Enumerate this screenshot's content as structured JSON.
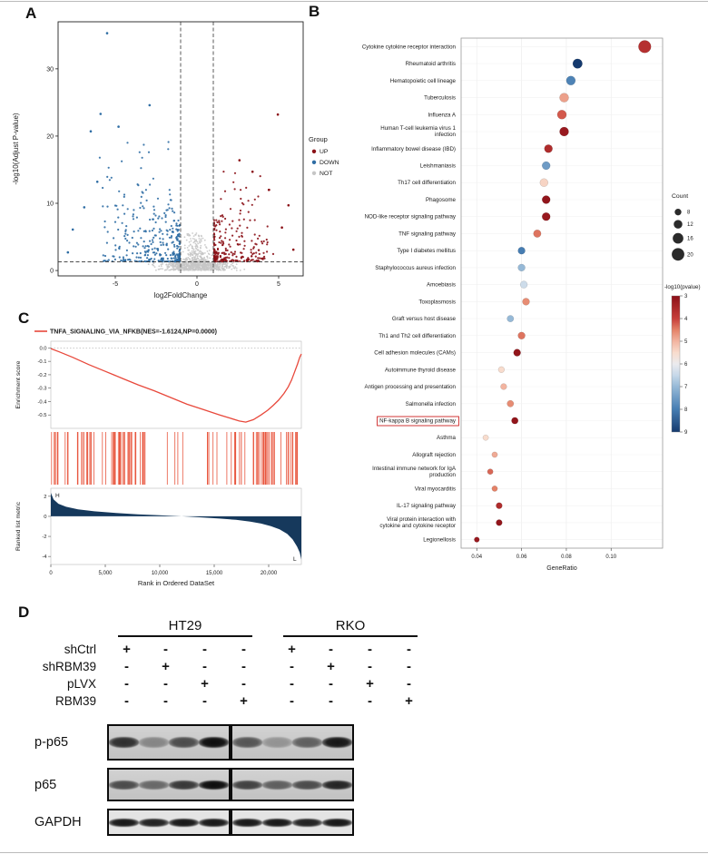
{
  "panels": {
    "a": "A",
    "b": "B",
    "c": "C",
    "d": "D"
  },
  "chart_data": [
    {
      "id": "volcano",
      "type": "scatter",
      "xlabel": "log2FoldChange",
      "ylabel": "-log10(Adjust P-value)",
      "xlim": [
        -8.5,
        6.5
      ],
      "ylim": [
        -0.8,
        37
      ],
      "xticks": [
        -5,
        0,
        5
      ],
      "yticks": [
        0,
        10,
        20,
        30
      ],
      "vlines": [
        -1,
        1
      ],
      "hline": 1.3,
      "legend": {
        "title": "Group",
        "items": [
          {
            "label": "UP",
            "color": "#8B1117"
          },
          {
            "label": "DOWN",
            "color": "#2E6DA4"
          },
          {
            "label": "NOT",
            "color": "#C6C6C6"
          }
        ]
      },
      "groups": [
        {
          "name": "UP",
          "color": "#8B1117"
        },
        {
          "name": "DOWN",
          "color": "#2E6DA4"
        },
        {
          "name": "NOT",
          "color": "#C6C6C6"
        }
      ],
      "seed": 7,
      "clusters": [
        {
          "group": 2,
          "n": 650,
          "xsd": 1.5,
          "y": [
            0.02,
            1.28
          ],
          "ypow": 1.1,
          "r": 0.9
        },
        {
          "group": 2,
          "n": 280,
          "xsd": 0.5,
          "xclip": 0.96,
          "y": [
            1.3,
            5.6
          ],
          "ypow": 3,
          "r": 0.9
        },
        {
          "group": 1,
          "n": 250,
          "x": [
            -1.05,
            -5.8
          ],
          "xpow": 2.2,
          "y": [
            1.35,
            9
          ],
          "ypow": 2.4,
          "r": 1.1
        },
        {
          "group": 1,
          "n": 50,
          "x": [
            -1.5,
            -6.3
          ],
          "xpow": 1.4,
          "y": [
            9,
            20
          ],
          "ypow": 1.9,
          "r": 1.1
        },
        {
          "group": 1,
          "n": 40,
          "x": [
            -2.0,
            -5.2
          ],
          "xpow": 1.2,
          "y": [
            1.4,
            6
          ],
          "ypow": 1.5,
          "r": 1.1
        },
        {
          "group": 0,
          "n": 210,
          "x": [
            1.05,
            4.6
          ],
          "xpow": 2.4,
          "y": [
            1.35,
            7.5
          ],
          "ypow": 2.4,
          "r": 1.1
        },
        {
          "group": 0,
          "n": 28,
          "x": [
            1.3,
            4.5
          ],
          "xpow": 1.5,
          "y": [
            7.5,
            15
          ],
          "ypow": 1.7,
          "r": 1.1
        },
        {
          "group": 0,
          "n": 25,
          "x": [
            1.5,
            4.8
          ],
          "xpow": 1.2,
          "y": [
            1.4,
            5
          ],
          "ypow": 1.5,
          "r": 1.1
        }
      ],
      "outliers": [
        [
          -5.5,
          35.3,
          1
        ],
        [
          -2.9,
          24.6,
          1
        ],
        [
          -5.9,
          23.3,
          1
        ],
        [
          -6.5,
          20.7,
          1
        ],
        [
          -4.8,
          21.4,
          1
        ],
        [
          -6.1,
          13.2,
          1
        ],
        [
          -7.6,
          6.1,
          1
        ],
        [
          -7.9,
          2.7,
          1
        ],
        [
          -6.9,
          9.4,
          1
        ],
        [
          4.95,
          23.2,
          0
        ],
        [
          2.6,
          16.4,
          0
        ],
        [
          3.4,
          14.7,
          0
        ],
        [
          5.6,
          9.7,
          0
        ],
        [
          5.9,
          3.1,
          0
        ],
        [
          4.4,
          12.0,
          0
        ],
        [
          5.2,
          6.4,
          0
        ]
      ]
    },
    {
      "id": "pathway-dotplot",
      "type": "scatter",
      "xlabel": "GeneRatio",
      "xlim": [
        0.033,
        0.123
      ],
      "xticks": [
        0.04,
        0.06,
        0.08,
        0.1
      ],
      "size_legend": {
        "title": "Count",
        "values": [
          8,
          12,
          16,
          20
        ]
      },
      "color_legend": {
        "title": "-log10(pvalue)",
        "ticks": [
          3,
          4,
          5,
          6,
          7,
          8,
          9
        ]
      },
      "highlight_color": "#CC2222",
      "pathways": [
        {
          "name": "Cytokine cytokine receptor interaction",
          "ratio": 0.115,
          "count": 20,
          "logp": 3.7
        },
        {
          "name": "Rheumatoid arthritis",
          "ratio": 0.085,
          "count": 14,
          "logp": 9.0
        },
        {
          "name": "Hematopoietic cell lineage",
          "ratio": 0.082,
          "count": 13,
          "logp": 7.9
        },
        {
          "name": "Tuberculosis",
          "ratio": 0.079,
          "count": 13,
          "logp": 4.8
        },
        {
          "name": "Influenza A",
          "ratio": 0.078,
          "count": 13,
          "logp": 4.2
        },
        {
          "name": "Human T-cell leukemia virus 1\ninfection",
          "ratio": 0.079,
          "count": 13,
          "logp": 3.2
        },
        {
          "name": "Inflammatory bowel disease (IBD)",
          "ratio": 0.072,
          "count": 11,
          "logp": 3.6
        },
        {
          "name": "Leishmaniasis",
          "ratio": 0.071,
          "count": 11,
          "logp": 7.5
        },
        {
          "name": "Th17 cell differentiation",
          "ratio": 0.07,
          "count": 11,
          "logp": 5.4
        },
        {
          "name": "Phagosome",
          "ratio": 0.071,
          "count": 11,
          "logp": 3.1
        },
        {
          "name": "NOD-like receptor signaling pathway",
          "ratio": 0.071,
          "count": 11,
          "logp": 3.2
        },
        {
          "name": "TNF signaling pathway",
          "ratio": 0.067,
          "count": 10,
          "logp": 4.4
        },
        {
          "name": "Type I diabetes mellitus",
          "ratio": 0.06,
          "count": 9,
          "logp": 8.0
        },
        {
          "name": "Staphylococcus aureus infection",
          "ratio": 0.06,
          "count": 9,
          "logp": 7.0
        },
        {
          "name": "Amoebiasis",
          "ratio": 0.061,
          "count": 9,
          "logp": 6.4
        },
        {
          "name": "Toxoplasmosis",
          "ratio": 0.062,
          "count": 9,
          "logp": 4.6
        },
        {
          "name": "Graft versus host disease",
          "ratio": 0.055,
          "count": 8,
          "logp": 7.0
        },
        {
          "name": "Th1 and Th2 cell differentiation",
          "ratio": 0.06,
          "count": 9,
          "logp": 4.4
        },
        {
          "name": "Cell adhesion molecules (CAMs)",
          "ratio": 0.058,
          "count": 9,
          "logp": 3.1
        },
        {
          "name": "Autoimmune thyroid disease",
          "ratio": 0.051,
          "count": 7,
          "logp": 5.5
        },
        {
          "name": "Antigen processing and presentation",
          "ratio": 0.052,
          "count": 7,
          "logp": 5.0
        },
        {
          "name": "Salmonella infection",
          "ratio": 0.055,
          "count": 8,
          "logp": 4.6
        },
        {
          "name": "NF-kappa B signaling pathway",
          "ratio": 0.057,
          "count": 8,
          "logp": 3.1,
          "highlight": true
        },
        {
          "name": "Asthma",
          "ratio": 0.044,
          "count": 6,
          "logp": 5.5
        },
        {
          "name": "Allograft rejection",
          "ratio": 0.048,
          "count": 6,
          "logp": 4.9
        },
        {
          "name": "Intestinal immune network for IgA\nproduction",
          "ratio": 0.046,
          "count": 6,
          "logp": 4.3
        },
        {
          "name": "Viral myocarditis",
          "ratio": 0.048,
          "count": 6,
          "logp": 4.5
        },
        {
          "name": "IL-17 signaling pathway",
          "ratio": 0.05,
          "count": 7,
          "logp": 3.6
        },
        {
          "name": "Viral protein interaction with\ncytokine and cytokine receptor",
          "ratio": 0.05,
          "count": 7,
          "logp": 3.1
        },
        {
          "name": "Legionellosis",
          "ratio": 0.04,
          "count": 5,
          "logp": 3.2
        }
      ]
    },
    {
      "id": "gsea",
      "type": "line",
      "title": "TNFA_SIGNALING_VIA_NFKB(NES=-1.6124,NP=0.0000)",
      "xlabel": "Rank in Ordered DataSet",
      "ylabel_top": "Enrichment score",
      "ylabel_bottom": "Ranked list metric",
      "x_max": 23000,
      "xticks": [
        0,
        5000,
        10000,
        15000,
        20000
      ],
      "xtick_labels": [
        "0",
        "5,000",
        "10,000",
        "15,000",
        "20,000"
      ],
      "es_yticks": [
        0,
        -0.1,
        -0.2,
        -0.3,
        -0.4,
        -0.5
      ],
      "rank_yticks": [
        2,
        0,
        -2,
        -4
      ],
      "es_range": [
        -0.6,
        0.05
      ],
      "rank_range": [
        -4.8,
        2.8
      ],
      "curve_color": "#E8483B",
      "hit_color": "#E8573F",
      "metric_color": "#16395C",
      "labels": {
        "high": "H",
        "low": "L"
      },
      "es_curve": [
        [
          0,
          -0.005
        ],
        [
          800,
          -0.03
        ],
        [
          2000,
          -0.07
        ],
        [
          3500,
          -0.125
        ],
        [
          5000,
          -0.175
        ],
        [
          6500,
          -0.225
        ],
        [
          8000,
          -0.275
        ],
        [
          9500,
          -0.32
        ],
        [
          11000,
          -0.37
        ],
        [
          12500,
          -0.42
        ],
        [
          14000,
          -0.46
        ],
        [
          15500,
          -0.5
        ],
        [
          16500,
          -0.525
        ],
        [
          17300,
          -0.545
        ],
        [
          17900,
          -0.553
        ],
        [
          18600,
          -0.535
        ],
        [
          19300,
          -0.5
        ],
        [
          19900,
          -0.465
        ],
        [
          20400,
          -0.43
        ],
        [
          20900,
          -0.39
        ],
        [
          21400,
          -0.34
        ],
        [
          21800,
          -0.29
        ],
        [
          22100,
          -0.24
        ],
        [
          22400,
          -0.175
        ],
        [
          22650,
          -0.12
        ],
        [
          22850,
          -0.07
        ],
        [
          23000,
          -0.045
        ]
      ],
      "hit_clusters": [
        {
          "n": 58,
          "x": [
            0,
            8800
          ],
          "pow": 1
        },
        {
          "n": 9,
          "x": [
            8800,
            15800
          ],
          "pow": 1
        },
        {
          "n": 46,
          "x": [
            15800,
            23000
          ],
          "pow": 0.85
        }
      ],
      "rank_metric": [
        [
          0,
          2.35
        ],
        [
          250,
          1.7
        ],
        [
          700,
          1.25
        ],
        [
          1400,
          0.95
        ],
        [
          2500,
          0.7
        ],
        [
          4000,
          0.5
        ],
        [
          6000,
          0.33
        ],
        [
          8000,
          0.2
        ],
        [
          10000,
          0.1
        ],
        [
          11800,
          0.02
        ],
        [
          12600,
          -0.03
        ],
        [
          14000,
          -0.12
        ],
        [
          15500,
          -0.22
        ],
        [
          17000,
          -0.35
        ],
        [
          18300,
          -0.52
        ],
        [
          19300,
          -0.72
        ],
        [
          20200,
          -0.98
        ],
        [
          21000,
          -1.3
        ],
        [
          21700,
          -1.75
        ],
        [
          22200,
          -2.3
        ],
        [
          22600,
          -3.0
        ],
        [
          22850,
          -3.6
        ],
        [
          23000,
          -4.3
        ]
      ]
    }
  ],
  "western": {
    "cell_lines": [
      "HT29",
      "RKO"
    ],
    "conditions": [
      {
        "label": "shCtrl",
        "ht29": [
          "+",
          "-",
          "-",
          "-"
        ],
        "rko": [
          "+",
          "-",
          "-",
          "-"
        ]
      },
      {
        "label": "shRBM39",
        "ht29": [
          "-",
          "+",
          "-",
          "-"
        ],
        "rko": [
          "-",
          "+",
          "-",
          "-"
        ]
      },
      {
        "label": "pLVX",
        "ht29": [
          "-",
          "-",
          "+",
          "-"
        ],
        "rko": [
          "-",
          "-",
          "+",
          "-"
        ]
      },
      {
        "label": "RBM39",
        "ht29": [
          "-",
          "-",
          "-",
          "+"
        ],
        "rko": [
          "-",
          "-",
          "-",
          "+"
        ]
      }
    ],
    "blots": [
      {
        "label": "p-p65",
        "ht29": [
          0.8,
          0.35,
          0.65,
          0.97
        ],
        "rko": [
          0.6,
          0.28,
          0.55,
          0.92
        ]
      },
      {
        "label": "p65",
        "ht29": [
          0.65,
          0.5,
          0.75,
          0.97
        ],
        "rko": [
          0.7,
          0.55,
          0.65,
          0.85
        ]
      },
      {
        "label": "GAPDH",
        "ht29": [
          0.92,
          0.88,
          0.92,
          0.92
        ],
        "rko": [
          0.92,
          0.92,
          0.88,
          0.92
        ]
      }
    ]
  }
}
